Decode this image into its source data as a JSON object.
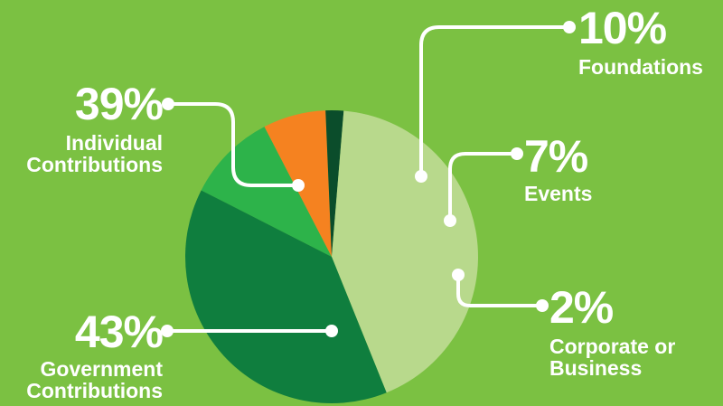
{
  "chart_data": {
    "type": "pie",
    "slices": [
      {
        "label": "Foundations",
        "value": 10,
        "display": "10%",
        "color": "#2db34a"
      },
      {
        "label": "Events",
        "value": 7,
        "display": "7%",
        "color": "#f58220"
      },
      {
        "label": "Corporate or Business",
        "value": 2,
        "display": "2%",
        "color": "#0b4d2b"
      },
      {
        "label": "Government Contributions",
        "value": 43,
        "display": "43%",
        "color": "#b8d98c"
      },
      {
        "label": "Individual Contributions",
        "value": 39,
        "display": "39%",
        "color": "#0f7e3e"
      }
    ]
  },
  "labels": {
    "foundations": {
      "pct": "10%",
      "name": "Foundations"
    },
    "events": {
      "pct": "7%",
      "name": "Events"
    },
    "corporate": {
      "pct": "2%",
      "name_line1": "Corporate or",
      "name_line2": "Business"
    },
    "government": {
      "pct": "43%",
      "name_line1": "Government",
      "name_line2": "Contributions"
    },
    "individual": {
      "pct": "39%",
      "name_line1": "Individual",
      "name_line2": "Contributions"
    }
  },
  "colors": {
    "background": "#7bc142",
    "callout": "#ffffff"
  }
}
